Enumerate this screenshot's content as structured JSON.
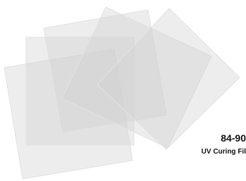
{
  "product": {
    "code": "84-90",
    "name": "UV Curing Fil"
  }
}
